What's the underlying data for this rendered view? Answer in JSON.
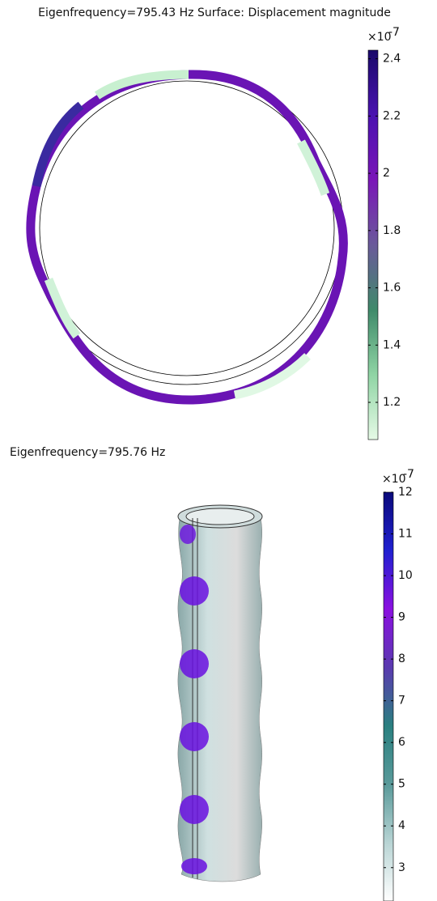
{
  "plots": [
    {
      "title": "Eigenfrequency=795.43 Hz  Surface: Displacement magnitude",
      "colorbar": {
        "scale_label": "×10",
        "scale_exponent": "-7",
        "lim": [
          1.07,
          2.43
        ],
        "ticks": [
          1.2,
          1.4,
          1.6,
          1.8,
          2,
          2.2,
          2.4
        ],
        "colors": [
          "#e6fae6",
          "#8fd4a4",
          "#3f8a6a",
          "#6a5a9a",
          "#7a16b8",
          "#4a12b0",
          "#1a0a6a"
        ]
      }
    },
    {
      "title": "Eigenfrequency=795.76 Hz",
      "colorbar": {
        "scale_label": "×10",
        "scale_exponent": "-7",
        "lim": [
          2.2,
          12
        ],
        "ticks": [
          3,
          4,
          5,
          6,
          7,
          8,
          9,
          10,
          11,
          12
        ],
        "colors": [
          "#ffffff",
          "#b8d4d4",
          "#5a9a9a",
          "#2a8080",
          "#5a3ab0",
          "#8a10e0",
          "#2020d0",
          "#0a0a7a"
        ]
      }
    }
  ]
}
